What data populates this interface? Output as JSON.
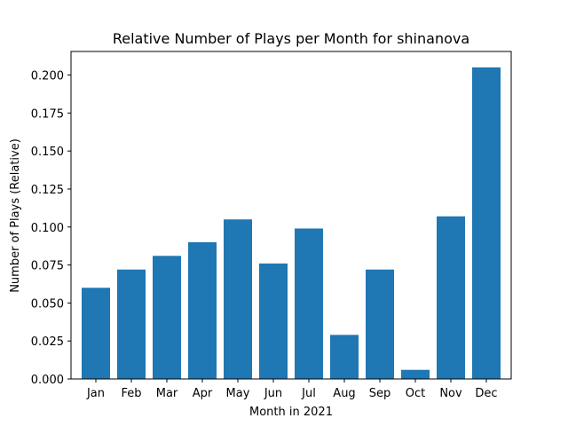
{
  "chart_data": {
    "type": "bar",
    "title": "Relative Number of Plays per Month for shinanova",
    "xlabel": "Month in 2021",
    "ylabel": "Number of Plays (Relative)",
    "categories": [
      "Jan",
      "Feb",
      "Mar",
      "Apr",
      "May",
      "Jun",
      "Jul",
      "Aug",
      "Sep",
      "Oct",
      "Nov",
      "Dec"
    ],
    "values": [
      0.06,
      0.072,
      0.081,
      0.09,
      0.105,
      0.076,
      0.099,
      0.029,
      0.072,
      0.006,
      0.107,
      0.205
    ],
    "ylim": [
      0,
      0.2155
    ],
    "yticks": [
      "0.000",
      "0.025",
      "0.050",
      "0.075",
      "0.100",
      "0.125",
      "0.150",
      "0.175",
      "0.200"
    ],
    "grid": false,
    "bar_color": "#1f77b4"
  }
}
